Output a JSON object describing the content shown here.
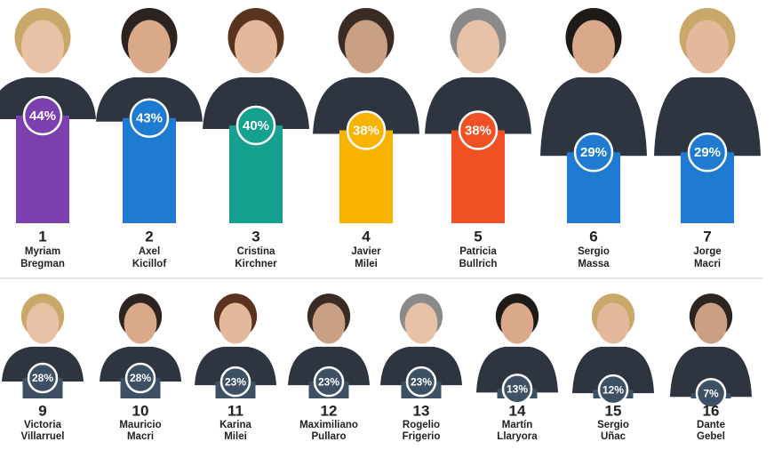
{
  "chart_data": [
    {
      "type": "bar",
      "ranks": [
        1,
        2,
        3,
        4,
        5,
        6,
        7
      ],
      "categories": [
        [
          "Myriam",
          "Bregman"
        ],
        [
          "Axel",
          "Kicillof"
        ],
        [
          "Cristina",
          "Kirchner"
        ],
        [
          "Javier",
          "Milei"
        ],
        [
          "Patricia",
          "Bullrich"
        ],
        [
          "Sergio",
          "Massa"
        ],
        [
          "Jorge",
          "Macri"
        ]
      ],
      "values": [
        44,
        43,
        40,
        38,
        38,
        29,
        29
      ],
      "value_labels": [
        "44%",
        "43%",
        "40%",
        "38%",
        "38%",
        "29%",
        "29%"
      ],
      "colors": [
        "#7c3fae",
        "#1f7ad2",
        "#16a08f",
        "#f7b300",
        "#ef5125",
        "#1f7ad2",
        "#1f7ad2"
      ]
    },
    {
      "type": "bar",
      "ranks": [
        9,
        10,
        11,
        12,
        13,
        14,
        15,
        16
      ],
      "categories": [
        [
          "Victoria",
          "Villarruel"
        ],
        [
          "Mauricio",
          "Macri"
        ],
        [
          "Karina",
          "Milei"
        ],
        [
          "Maximiliano",
          "Pullaro"
        ],
        [
          "Rogelio",
          "Frigerio"
        ],
        [
          "Martín",
          "Llaryora"
        ],
        [
          "Sergio",
          "Uñac"
        ],
        [
          "Dante",
          "Gebel"
        ]
      ],
      "values": [
        28,
        28,
        23,
        23,
        23,
        13,
        12,
        7
      ],
      "value_labels": [
        "28%",
        "28%",
        "23%",
        "23%",
        "23%",
        "13%",
        "12%",
        "7%"
      ],
      "color": "#3e5064"
    }
  ]
}
